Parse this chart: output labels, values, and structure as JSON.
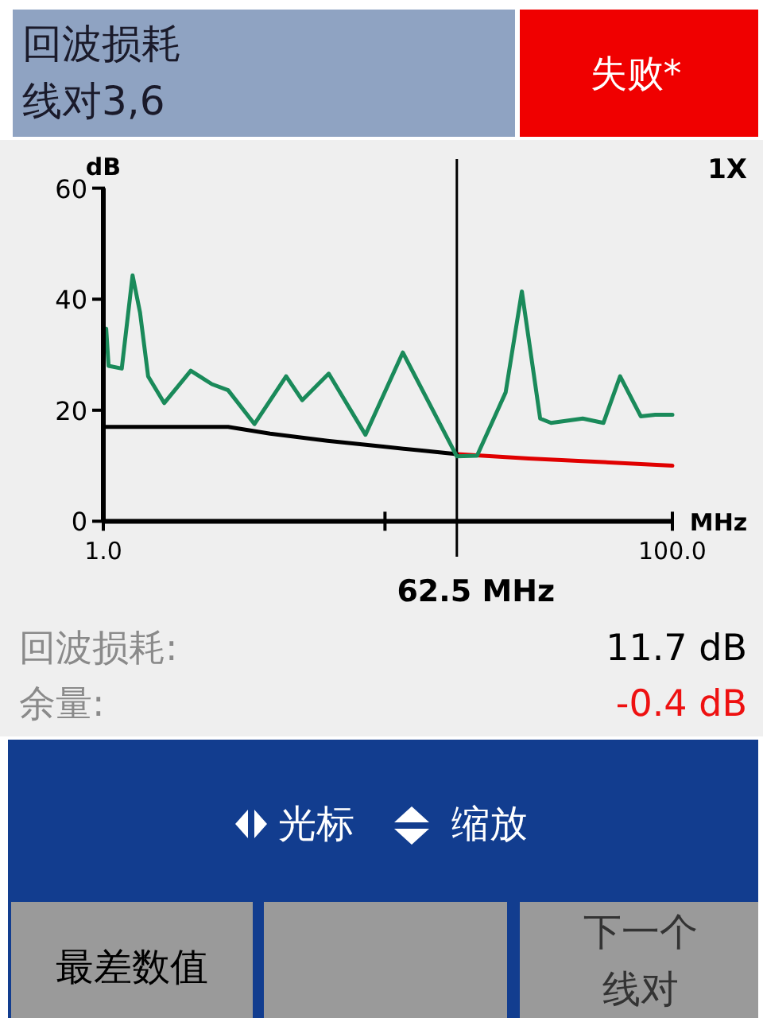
{
  "chart_data": {
    "type": "line",
    "title": "回波损耗",
    "subtitle": "线对3,6",
    "xlabel": "MHz",
    "ylabel": "dB",
    "xlim": [
      1,
      100
    ],
    "ylim": [
      0,
      60
    ],
    "xticks": [
      {
        "value": 1,
        "label": "1.0"
      },
      {
        "value": 50,
        "label": null
      },
      {
        "value": 100,
        "label": "100.0"
      }
    ],
    "yticks": [
      0,
      20,
      40,
      60
    ],
    "series": [
      {
        "color": "#1a8a5a",
        "x": [
          1,
          1.5,
          1.9,
          4.2,
          6.1,
          7.4,
          8.8,
          11.6,
          16.2,
          19.9,
          22.7,
          27.3,
          32.8,
          35.6,
          40.2,
          46.6,
          53.1,
          62.5,
          66,
          71,
          73.8,
          77,
          78.9,
          84.4,
          88,
          90.9,
          94.5,
          97,
          100
        ],
        "values": [
          30,
          34.7,
          28,
          27.5,
          44.3,
          37.6,
          26.1,
          21.3,
          27.1,
          24.7,
          23.6,
          17.5,
          26.1,
          21.8,
          26.6,
          15.6,
          30.4,
          11.7,
          11.8,
          23.2,
          41.4,
          18.5,
          17.7,
          18.5,
          17.7,
          26.1,
          18.9,
          19.2,
          19.2
        ]
      },
      {
        "color": "#000000",
        "x": [
          1,
          22.7,
          30,
          40,
          50,
          56.8,
          62.5
        ],
        "values": [
          17,
          17,
          15.8,
          14.5,
          13.4,
          12.7,
          12.1
        ]
      },
      {
        "color": "#e00000",
        "x": [
          62.5,
          75,
          85,
          100
        ],
        "values": [
          12.1,
          11.3,
          10.8,
          10.0
        ]
      }
    ],
    "ref_lines": [
      {
        "axis": "x",
        "value": 62.5,
        "label": "62.5 MHz",
        "color": "#000000"
      }
    ],
    "grid": false,
    "annotations": [
      "失败*",
      "1X",
      "回波损耗:",
      "11.7 dB",
      "余量:",
      "-0.4 dB",
      "光标",
      "缩放",
      "最差数值",
      "下一个",
      "线对"
    ]
  }
}
